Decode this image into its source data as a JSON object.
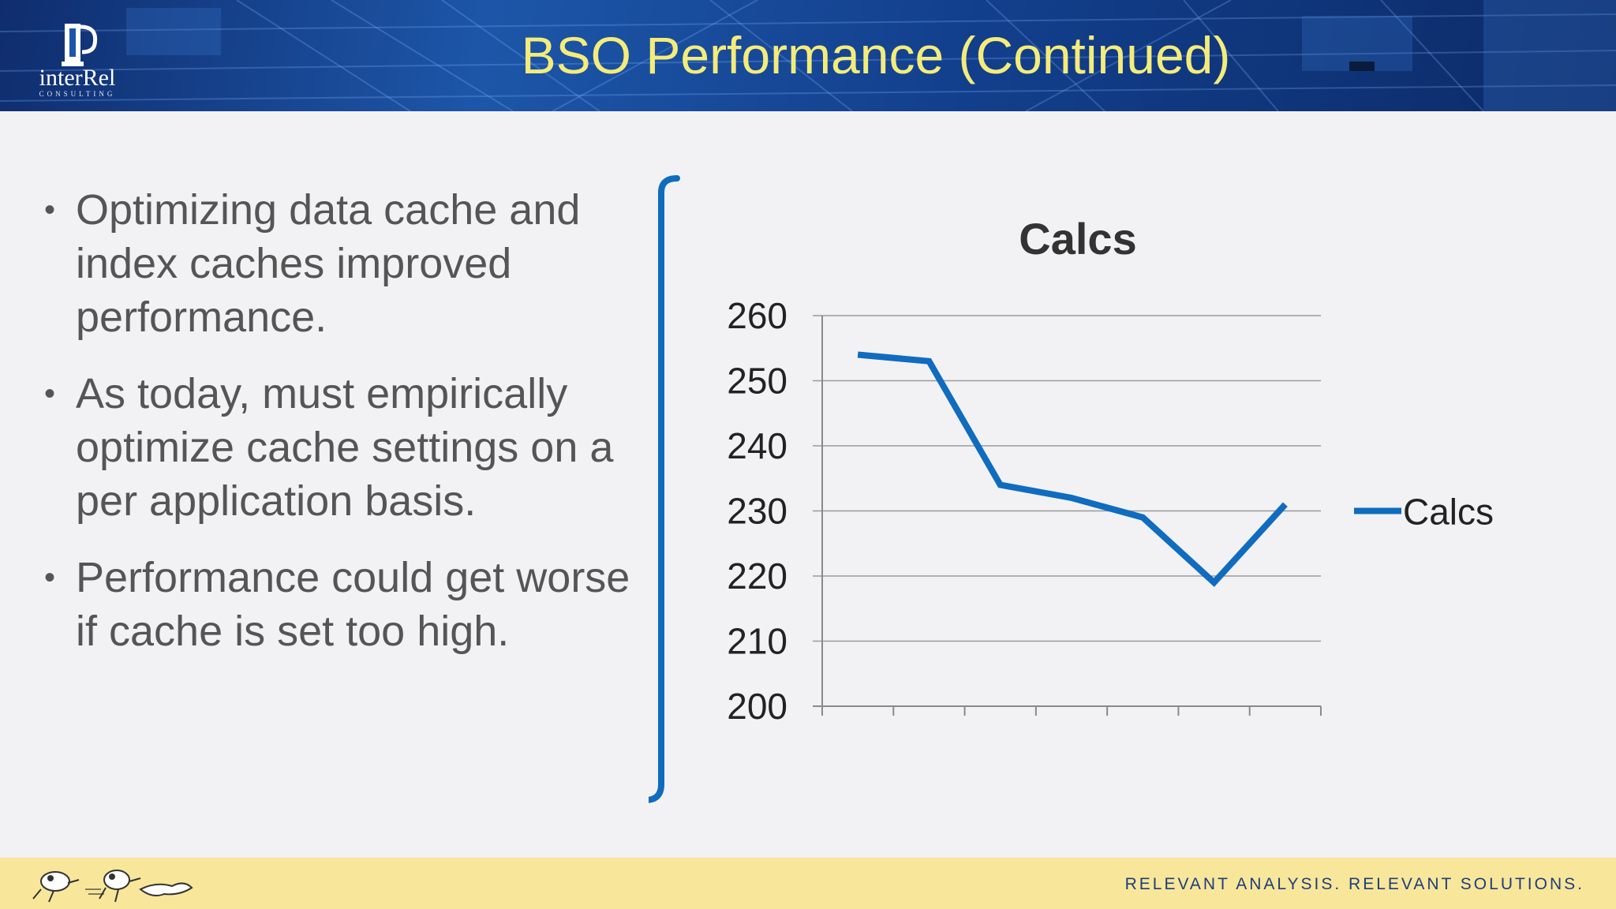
{
  "header": {
    "title": "BSO Performance (Continued)",
    "logo_text": "interRel",
    "logo_subtext": "CONSULTING"
  },
  "bullets": [
    "Optimizing data cache and index caches improved performance.",
    "As today, must empirically optimize cache settings on a per application basis.",
    "Performance could get worse if cache is set too high."
  ],
  "colors": {
    "title": "#f4ec7a",
    "accent": "#0f6cbf",
    "footer": "#f8e79a"
  },
  "chart_data": {
    "type": "line",
    "title": "Calcs",
    "x": [
      1,
      2,
      3,
      4,
      5,
      6,
      7
    ],
    "series": [
      {
        "name": "Calcs",
        "values": [
          254,
          253,
          234,
          232,
          229,
          219,
          231
        ]
      }
    ],
    "ylim": [
      200,
      260
    ],
    "yticks": [
      200,
      210,
      220,
      230,
      240,
      250,
      260
    ],
    "xlabel": "",
    "ylabel": "",
    "grid": true,
    "legend": "right"
  },
  "footer": {
    "tagline": "RELEVANT ANALYSIS. RELEVANT SOLUTIONS."
  }
}
